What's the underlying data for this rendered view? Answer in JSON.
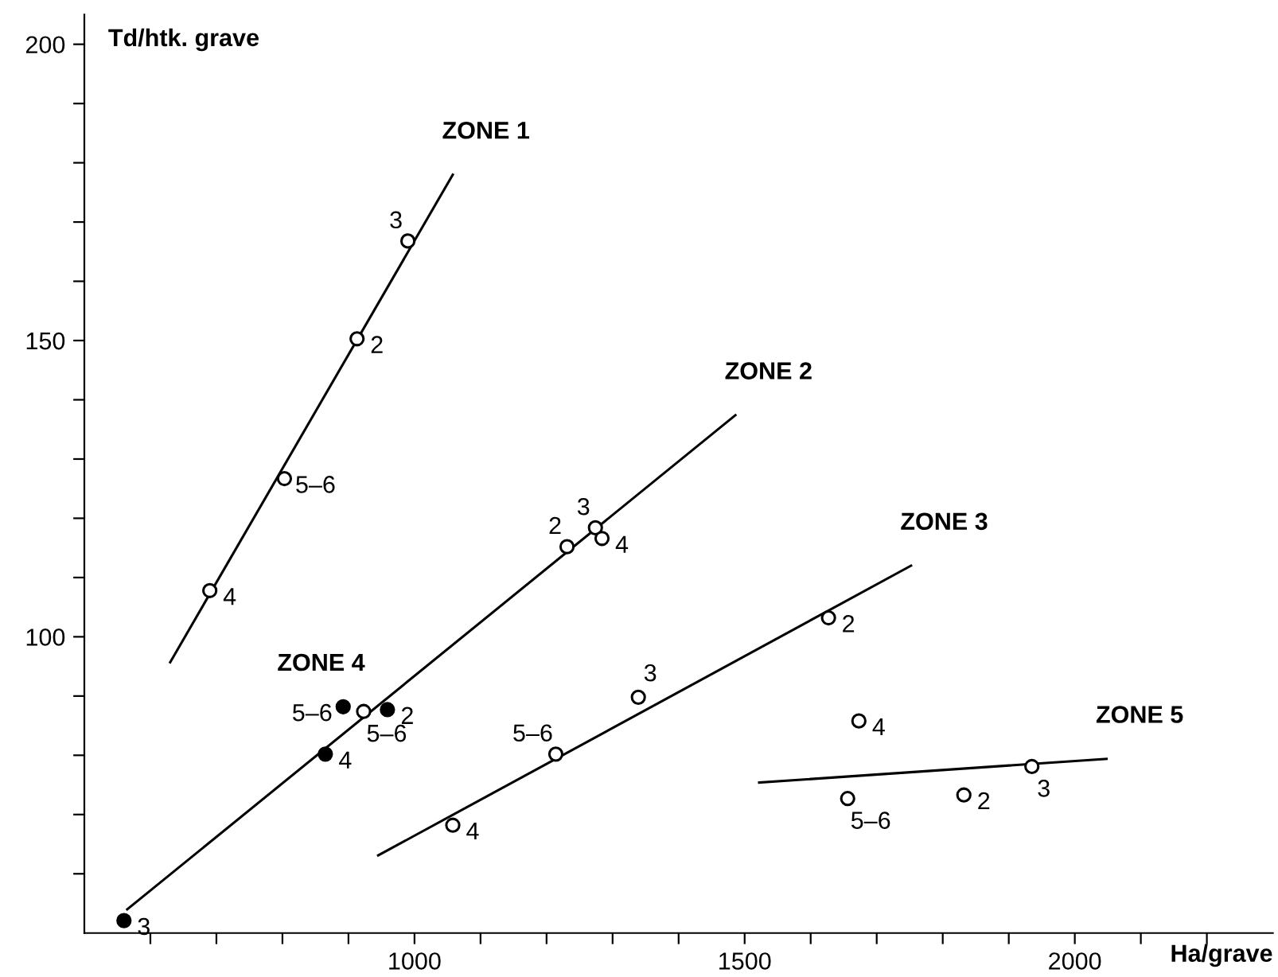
{
  "chart_data": {
    "type": "scatter",
    "xlabel": "Ha/grave",
    "ylabel": "Td/htk. grave",
    "xlim": [
      500,
      2300
    ],
    "ylim": [
      50,
      205
    ],
    "xticks": [
      {
        "value": 600,
        "label": null
      },
      {
        "value": 700,
        "label": null
      },
      {
        "value": 800,
        "label": null
      },
      {
        "value": 900,
        "label": null
      },
      1000,
      {
        "value": 1100,
        "label": null
      },
      {
        "value": 1200,
        "label": null
      },
      {
        "value": 1300,
        "label": null
      },
      {
        "value": 1400,
        "label": null
      },
      1500,
      {
        "value": 1600,
        "label": null
      },
      {
        "value": 1700,
        "label": null
      },
      {
        "value": 1800,
        "label": null
      },
      {
        "value": 1900,
        "label": null
      },
      2000,
      {
        "value": 2100,
        "label": null
      },
      {
        "value": 2200,
        "label": null
      }
    ],
    "yticks": [
      {
        "value": 60,
        "label": null
      },
      {
        "value": 70,
        "label": null
      },
      {
        "value": 80,
        "label": null
      },
      {
        "value": 90,
        "label": null
      },
      100,
      {
        "value": 110,
        "label": null
      },
      {
        "value": 120,
        "label": null
      },
      {
        "value": 130,
        "label": null
      },
      {
        "value": 140,
        "label": null
      },
      150,
      {
        "value": 160,
        "label": null
      },
      {
        "value": 170,
        "label": null
      },
      {
        "value": 180,
        "label": null
      },
      {
        "value": 190,
        "label": null
      },
      200
    ],
    "grid": false,
    "legend": false,
    "series": [
      {
        "marker": "circle",
        "color": "#ffffff",
        "x": [
          990,
          913,
          803,
          690
        ],
        "values": [
          166.8,
          150.3,
          126.7,
          107.8
        ]
      },
      {
        "type": "line",
        "name": "ZONE 1",
        "color": "#000000",
        "marker": "none",
        "line_style": "solid",
        "x": [
          630,
          1058
        ],
        "values": [
          95.7,
          178
        ]
      },
      {
        "marker": "circle",
        "color": "#ffffff",
        "x": [
          1274,
          1284,
          1231,
          923
        ],
        "values": [
          118.4,
          116.6,
          115.2,
          87.4
        ]
      },
      {
        "type": "line",
        "name": "ZONE 2",
        "color": "#000000",
        "marker": "none",
        "line_style": "solid",
        "x": [
          565,
          1486
        ],
        "values": [
          54,
          137.4
        ]
      },
      {
        "name": "ZONE 4",
        "marker": "circle",
        "color": "#000000",
        "x": [
          892,
          959,
          865,
          560
        ],
        "values": [
          88.2,
          87.7,
          80.2,
          52.1
        ]
      },
      {
        "marker": "circle",
        "color": "#ffffff",
        "x": [
          1058,
          1214,
          1339,
          1627
        ],
        "values": [
          68.2,
          80.2,
          89.8,
          103.2
        ]
      },
      {
        "type": "line",
        "name": "ZONE 3",
        "color": "#000000",
        "marker": "none",
        "line_style": "solid",
        "x": [
          945,
          1752
        ],
        "values": [
          63.1,
          112
        ]
      },
      {
        "marker": "circle",
        "color": "#ffffff",
        "x": [
          1673,
          1656,
          1832,
          1935
        ],
        "values": [
          85.8,
          72.7,
          73.3,
          78.1
        ]
      },
      {
        "type": "line",
        "name": "ZONE 5",
        "color": "#000000",
        "marker": "none",
        "line_style": "solid",
        "x": [
          1522,
          2048
        ],
        "values": [
          75.4,
          79.4
        ]
      }
    ],
    "annotations": [
      {
        "text": "3",
        "x": 990,
        "y": 166.8
      },
      {
        "text": "2",
        "x": 913,
        "y": 150.3
      },
      {
        "text": "5–6",
        "x": 803,
        "y": 126.7
      },
      {
        "text": "4",
        "x": 690,
        "y": 107.8
      },
      {
        "text": "3",
        "x": 1274,
        "y": 118.4
      },
      {
        "text": "4",
        "x": 1284,
        "y": 116.6
      },
      {
        "text": "2",
        "x": 1231,
        "y": 115.2
      },
      {
        "text": "5–6",
        "x": 923,
        "y": 87.4
      },
      {
        "text": "5–6",
        "x": 892,
        "y": 88.2
      },
      {
        "text": "2",
        "x": 959,
        "y": 87.7
      },
      {
        "text": "4",
        "x": 865,
        "y": 80.2
      },
      {
        "text": "3",
        "x": 560,
        "y": 52.1
      },
      {
        "text": "4",
        "x": 1058,
        "y": 68.2
      },
      {
        "text": "5–6",
        "x": 1214,
        "y": 80.2
      },
      {
        "text": "3",
        "x": 1339,
        "y": 89.8
      },
      {
        "text": "2",
        "x": 1627,
        "y": 103.2
      },
      {
        "text": "4",
        "x": 1673,
        "y": 85.8
      },
      {
        "text": "5–6",
        "x": 1656,
        "y": 72.7
      },
      {
        "text": "2",
        "x": 1832,
        "y": 73.3
      },
      {
        "text": "3",
        "x": 1935,
        "y": 78.1
      }
    ]
  }
}
